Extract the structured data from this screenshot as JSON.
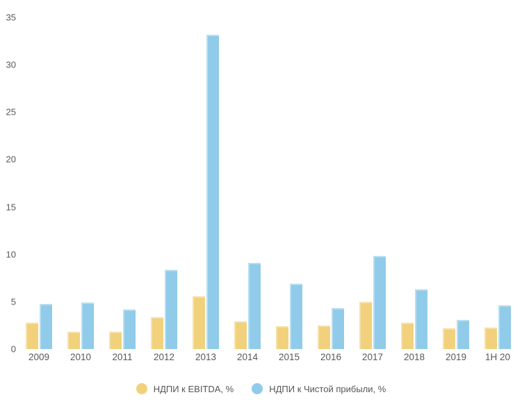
{
  "chart_data": {
    "type": "bar",
    "title": "",
    "xlabel": "",
    "ylabel": "",
    "categories": [
      "2009",
      "2010",
      "2011",
      "2012",
      "2013",
      "2014",
      "2015",
      "2016",
      "2017",
      "2018",
      "2019",
      "1H 20"
    ],
    "series": [
      {
        "name": "НДПИ к EBITDA, %",
        "color": "#F2D17C",
        "values": [
          2.8,
          1.8,
          1.8,
          3.4,
          5.6,
          2.9,
          2.4,
          2.5,
          5.0,
          2.8,
          2.2,
          2.3
        ]
      },
      {
        "name": "НДПИ к Чистой прибыли, %",
        "color": "#90CBE9",
        "values": [
          4.8,
          4.9,
          4.2,
          8.4,
          33.2,
          9.1,
          6.9,
          4.3,
          9.8,
          6.3,
          3.1,
          4.6
        ]
      }
    ],
    "ylim": [
      0,
      35
    ],
    "yticks": [
      0,
      5,
      10,
      15,
      20,
      25,
      30,
      35
    ],
    "grid": false,
    "legend_position": "bottom",
    "background_color": "#FFFFFF",
    "axis_text_color": "#58585A"
  }
}
